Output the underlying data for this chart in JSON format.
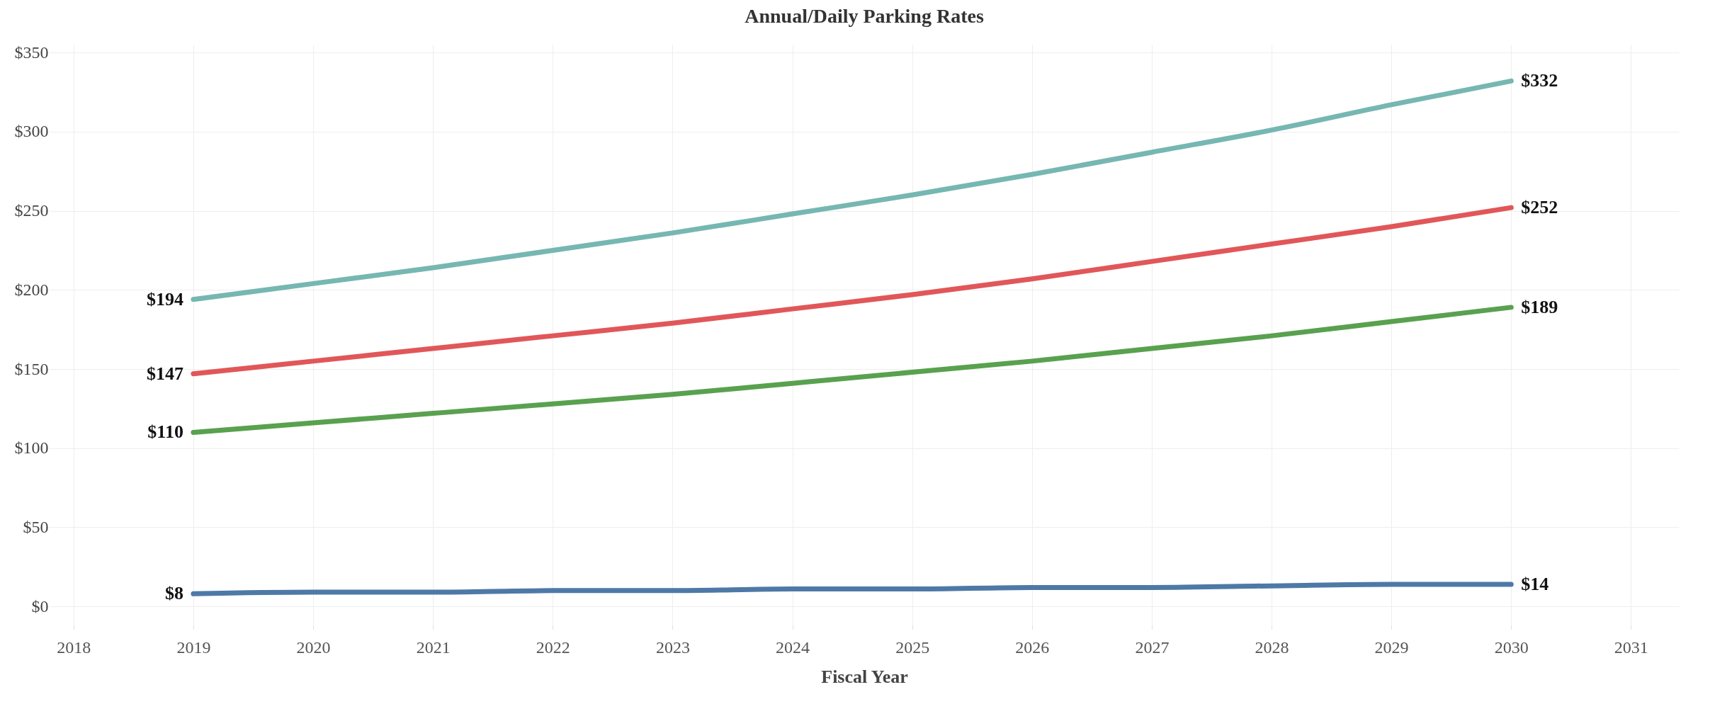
{
  "chart_data": {
    "type": "line",
    "title": "Annual/Daily Parking Rates",
    "xlabel": "Fiscal Year",
    "x": [
      2019,
      2020,
      2021,
      2022,
      2023,
      2024,
      2025,
      2026,
      2027,
      2028,
      2029,
      2030
    ],
    "series": [
      {
        "color": "#76b7b2",
        "values": [
          194,
          204,
          214,
          225,
          236,
          248,
          260,
          273,
          287,
          301,
          317,
          332
        ],
        "value_labels": [
          "$194",
          null,
          null,
          null,
          null,
          null,
          null,
          null,
          null,
          null,
          null,
          "$332"
        ]
      },
      {
        "color": "#e15759",
        "values": [
          147,
          155,
          163,
          171,
          179,
          188,
          197,
          207,
          218,
          229,
          240,
          252
        ],
        "value_labels": [
          "$147",
          null,
          null,
          null,
          null,
          null,
          null,
          null,
          null,
          null,
          null,
          "$252"
        ]
      },
      {
        "color": "#59a14f",
        "values": [
          110,
          116,
          122,
          128,
          134,
          141,
          148,
          155,
          163,
          171,
          180,
          189
        ],
        "value_labels": [
          "$110",
          null,
          null,
          null,
          null,
          null,
          null,
          null,
          null,
          null,
          null,
          "$189"
        ]
      },
      {
        "color": "#4e79a7",
        "values": [
          8,
          9,
          9,
          10,
          10,
          11,
          11,
          12,
          12,
          13,
          14,
          14
        ],
        "value_labels": [
          "$8",
          null,
          null,
          null,
          null,
          null,
          null,
          null,
          null,
          null,
          null,
          "$14"
        ]
      }
    ],
    "xlim": [
      2017.8,
      2031.4
    ],
    "xticks": [
      2018,
      2019,
      2020,
      2021,
      2022,
      2023,
      2024,
      2025,
      2026,
      2027,
      2028,
      2029,
      2030,
      2031
    ],
    "ylim": [
      -12,
      355
    ],
    "yticks": [
      {
        "value": 0,
        "label": "$0"
      },
      {
        "value": 50,
        "label": "$50"
      },
      {
        "value": 100,
        "label": "$100"
      },
      {
        "value": 150,
        "label": "$150"
      },
      {
        "value": 200,
        "label": "$200"
      },
      {
        "value": 250,
        "label": "$250"
      },
      {
        "value": 300,
        "label": "$300"
      },
      {
        "value": 350,
        "label": "$350"
      }
    ],
    "grid": true,
    "legend": false,
    "marker": "none",
    "line_style": "solid"
  }
}
